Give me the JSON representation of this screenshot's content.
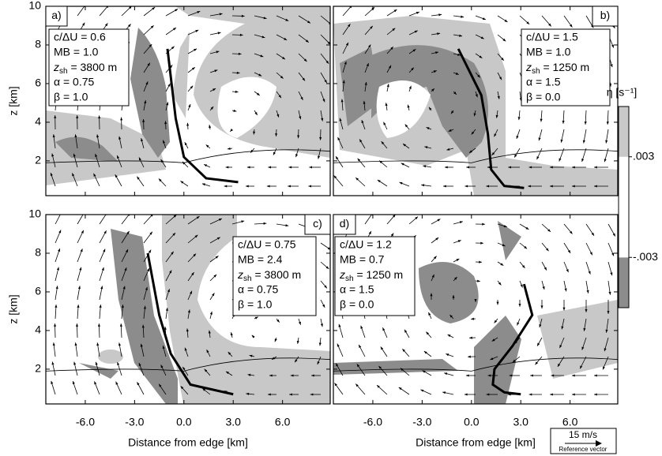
{
  "chart_data": [
    {
      "type": "line",
      "panel": "a)",
      "xlim": [
        -8.4,
        8.9
      ],
      "ylim": [
        0.2,
        10
      ],
      "xticks": [
        {
          "value": -6,
          "label": "-6.0"
        },
        {
          "value": -3,
          "label": "-3.0"
        },
        {
          "value": 0,
          "label": "0.0"
        },
        {
          "value": 3,
          "label": "3.0"
        },
        {
          "value": 6,
          "label": "6.0"
        }
      ],
      "yticks": [
        2,
        4,
        6,
        8,
        10
      ],
      "show_xticklabels": false,
      "show_yticklabels": true,
      "ylabel": "z [km]",
      "color": "#000000",
      "x": [
        -1.0,
        -0.5,
        0.0,
        1.35,
        3.3
      ],
      "y": [
        7.8,
        4.2,
        2.2,
        1.1,
        0.9
      ],
      "params": [
        {
          "text": "c/ΔU = 0.6"
        },
        {
          "text": "MB = 1.0"
        },
        {
          "text": "z",
          "sub": "sh",
          "rest": " = 3800 m"
        },
        {
          "text": "α = 0.75"
        },
        {
          "text": "β = 1.0"
        }
      ]
    },
    {
      "type": "line",
      "panel": "b)",
      "xlim": [
        -8.4,
        8.9
      ],
      "ylim": [
        0.2,
        10
      ],
      "xticks": [
        {
          "value": -6,
          "label": "-6.0"
        },
        {
          "value": -3,
          "label": "-3.0"
        },
        {
          "value": 0,
          "label": "0.0"
        },
        {
          "value": 3,
          "label": "3.0"
        },
        {
          "value": 6,
          "label": "6.0"
        }
      ],
      "yticks": [
        2,
        4,
        6,
        8,
        10
      ],
      "show_xticklabels": false,
      "show_yticklabels": false,
      "color": "#000000",
      "x": [
        -0.8,
        0.6,
        1.0,
        1.2,
        2.0,
        3.2
      ],
      "y": [
        7.8,
        5.4,
        3.4,
        1.55,
        0.7,
        0.6
      ],
      "params": [
        {
          "text": "c/ΔU = 1.5"
        },
        {
          "text": "MB = 1.0"
        },
        {
          "text": "z",
          "sub": "sh",
          "rest": " = 1250 m"
        },
        {
          "text": "α = 1.5"
        },
        {
          "text": "β = 0.0"
        }
      ]
    },
    {
      "type": "line",
      "panel": "c)",
      "xlim": [
        -8.4,
        8.9
      ],
      "ylim": [
        0.2,
        10
      ],
      "xticks": [
        {
          "value": -6,
          "label": "-6.0"
        },
        {
          "value": -3,
          "label": "-3.0"
        },
        {
          "value": 0,
          "label": "0.0"
        },
        {
          "value": 3,
          "label": "3.0"
        },
        {
          "value": 6,
          "label": "6.0"
        }
      ],
      "yticks": [
        2,
        4,
        6,
        8,
        10
      ],
      "show_xticklabels": true,
      "show_yticklabels": true,
      "ylabel": "z [km]",
      "xlabel": "Distance from edge [km]",
      "color": "#000000",
      "x": [
        -2.2,
        -1.5,
        -0.8,
        0.4,
        3.0
      ],
      "y": [
        8.0,
        4.8,
        2.8,
        1.2,
        0.7
      ],
      "params": [
        {
          "text": "c/ΔU = 0.75"
        },
        {
          "text": "MB = 2.4"
        },
        {
          "text": "z",
          "sub": "sh",
          "rest": " = 3800 m"
        },
        {
          "text": "α = 0.75"
        },
        {
          "text": "β = 1.0"
        }
      ]
    },
    {
      "type": "line",
      "panel": "d)",
      "xlim": [
        -8.4,
        8.9
      ],
      "ylim": [
        0.2,
        10
      ],
      "xticks": [
        {
          "value": -6,
          "label": "-6.0"
        },
        {
          "value": -3,
          "label": "-3.0"
        },
        {
          "value": 0,
          "label": "0.0"
        },
        {
          "value": 3,
          "label": "3.0"
        },
        {
          "value": 6,
          "label": "6.0"
        }
      ],
      "yticks": [
        2,
        4,
        6,
        8,
        10
      ],
      "show_xticklabels": true,
      "show_yticklabels": false,
      "xlabel": "Distance from edge [km]",
      "color": "#000000",
      "x": [
        3.2,
        3.7,
        2.5,
        1.4,
        1.3,
        2.0,
        3.0
      ],
      "y": [
        6.4,
        4.8,
        3.2,
        2.0,
        1.2,
        0.8,
        0.7
      ],
      "params": [
        {
          "text": "c/ΔU = 1.2"
        },
        {
          "text": "MB = 0.7"
        },
        {
          "text": "z",
          "sub": "sh",
          "rest": " = 1250 m"
        },
        {
          "text": "α = 1.5"
        },
        {
          "text": "β = 0.0"
        }
      ]
    },
    {
      "type": "colorbar",
      "label": "η [s⁻¹]",
      "lim": [
        -0.006,
        0.006
      ],
      "ticks": [
        {
          "value": 0.003,
          "label": ".003"
        },
        {
          "value": -0.003,
          "label": "-.003"
        }
      ],
      "colors": [
        "#8c8c8c",
        "#ffffff",
        "#c8c8c8"
      ]
    },
    {
      "type": "reference",
      "label": "15 m/s",
      "caption": "Reference vector"
    }
  ]
}
